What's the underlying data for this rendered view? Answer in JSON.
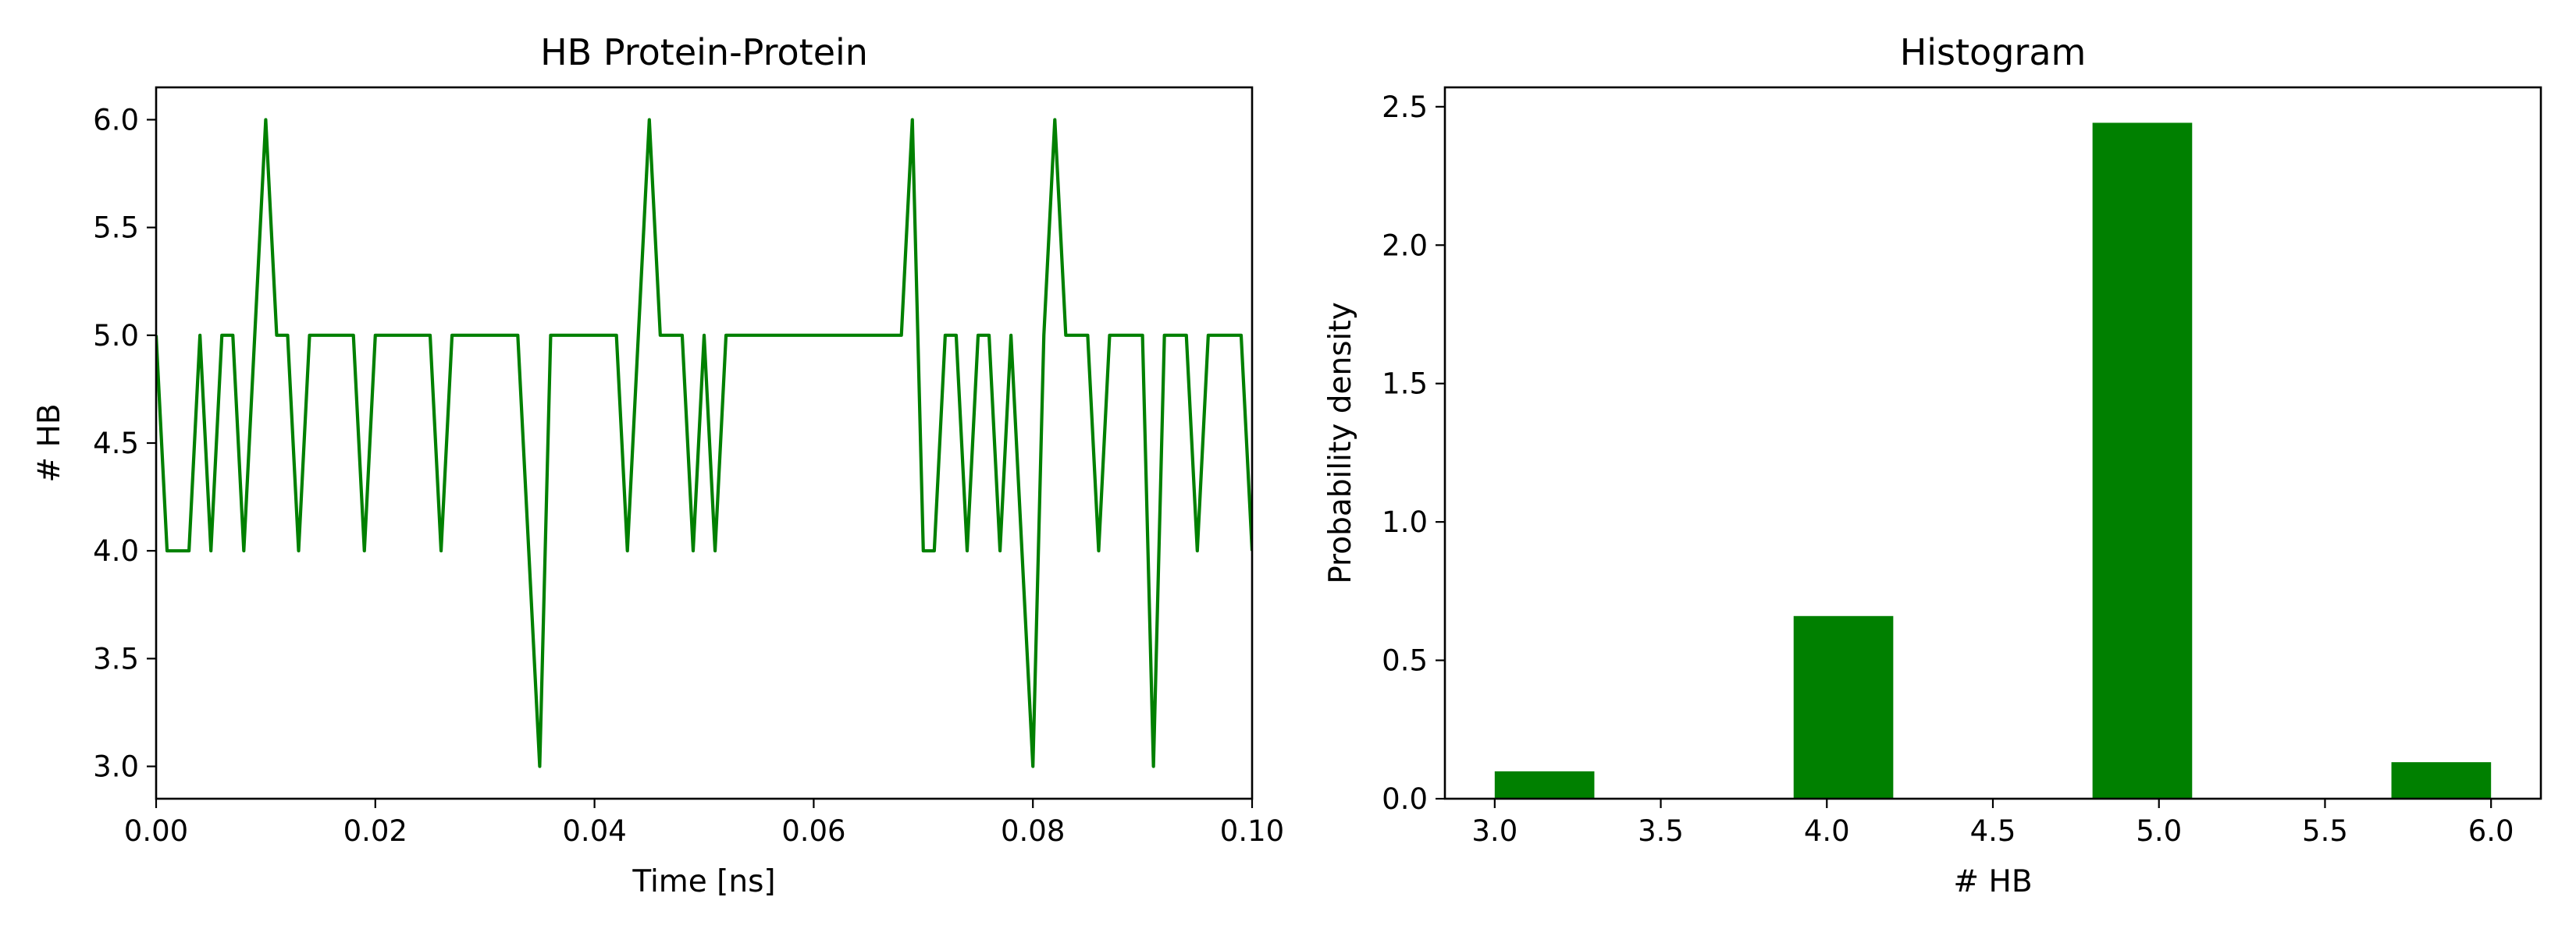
{
  "chart_data": [
    {
      "type": "line",
      "title": "HB Protein-Protein",
      "xlabel": "Time [ns]",
      "ylabel": "# HB",
      "xlim": [
        0.0,
        0.1
      ],
      "ylim": [
        2.85,
        6.15
      ],
      "xticks": [
        "0.00",
        "0.02",
        "0.04",
        "0.06",
        "0.08",
        "0.10"
      ],
      "yticks": [
        "3.0",
        "3.5",
        "4.0",
        "4.5",
        "5.0",
        "5.5",
        "6.0"
      ],
      "grid": false,
      "color": "#008000",
      "series": [
        {
          "x": [
            0.0,
            0.001,
            0.002,
            0.003,
            0.004,
            0.005,
            0.006,
            0.007,
            0.008,
            0.009,
            0.01,
            0.011,
            0.012,
            0.013,
            0.014,
            0.015,
            0.016,
            0.017,
            0.018,
            0.019,
            0.02,
            0.021,
            0.022,
            0.023,
            0.024,
            0.025,
            0.026,
            0.027,
            0.028,
            0.029,
            0.03,
            0.031,
            0.032,
            0.033,
            0.034,
            0.035,
            0.036,
            0.037,
            0.038,
            0.039,
            0.04,
            0.041,
            0.042,
            0.043,
            0.044,
            0.045,
            0.046,
            0.047,
            0.048,
            0.049,
            0.05,
            0.051,
            0.052,
            0.053,
            0.054,
            0.055,
            0.056,
            0.057,
            0.058,
            0.059,
            0.06,
            0.061,
            0.062,
            0.063,
            0.064,
            0.065,
            0.066,
            0.067,
            0.068,
            0.069,
            0.07,
            0.071,
            0.072,
            0.073,
            0.074,
            0.075,
            0.076,
            0.077,
            0.078,
            0.079,
            0.08,
            0.081,
            0.082,
            0.083,
            0.084,
            0.085,
            0.086,
            0.087,
            0.088,
            0.089,
            0.09,
            0.091,
            0.092,
            0.093,
            0.094,
            0.095,
            0.096,
            0.097,
            0.098,
            0.099,
            0.1
          ],
          "y": [
            5,
            4,
            4,
            4,
            5,
            4,
            5,
            5,
            4,
            5,
            6,
            5,
            5,
            4,
            5,
            5,
            5,
            5,
            5,
            4,
            5,
            5,
            5,
            5,
            5,
            5,
            4,
            5,
            5,
            5,
            5,
            5,
            5,
            5,
            4,
            3,
            5,
            5,
            5,
            5,
            5,
            5,
            5,
            4,
            5,
            6,
            5,
            5,
            5,
            4,
            5,
            4,
            5,
            5,
            5,
            5,
            5,
            5,
            5,
            5,
            5,
            5,
            5,
            5,
            5,
            5,
            5,
            5,
            5,
            6,
            4,
            4,
            5,
            5,
            4,
            5,
            5,
            4,
            5,
            4,
            3,
            5,
            6,
            5,
            5,
            5,
            4,
            5,
            5,
            5,
            5,
            3,
            5,
            5,
            5,
            4,
            5,
            5,
            5,
            5,
            4
          ]
        }
      ]
    },
    {
      "type": "bar",
      "title": "Histogram",
      "xlabel": "# HB",
      "ylabel": "Probability density",
      "xlim": [
        2.85,
        6.15
      ],
      "ylim": [
        0,
        2.57
      ],
      "xticks": [
        "3.0",
        "3.5",
        "4.0",
        "4.5",
        "5.0",
        "5.5",
        "6.0"
      ],
      "yticks": [
        "0.0",
        "0.5",
        "1.0",
        "1.5",
        "2.0",
        "2.5"
      ],
      "grid": false,
      "color": "#008000",
      "bins": [
        {
          "x0": 3.0,
          "x1": 3.3,
          "density": 0.099
        },
        {
          "x0": 3.9,
          "x1": 4.2,
          "density": 0.66
        },
        {
          "x0": 4.8,
          "x1": 5.1,
          "density": 2.442
        },
        {
          "x0": 5.7,
          "x1": 6.0,
          "density": 0.132
        }
      ]
    }
  ]
}
